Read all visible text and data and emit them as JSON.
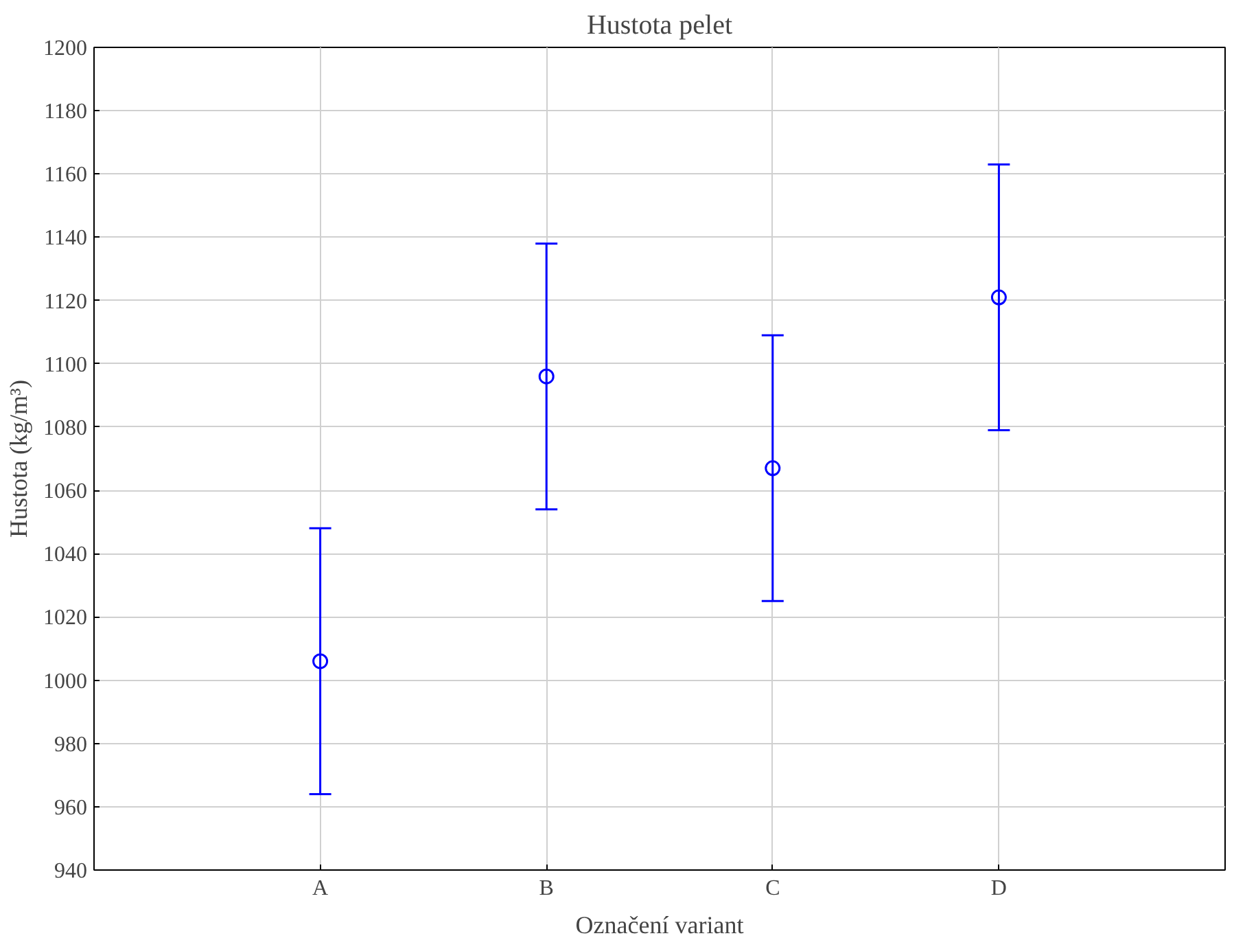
{
  "chart_data": {
    "type": "scatter",
    "title": "Hustota pelet",
    "xlabel": "Označení variant",
    "ylabel": "Hustota (kg/m³)",
    "categories": [
      "A",
      "B",
      "C",
      "D"
    ],
    "series": [
      {
        "color": "#0000ff",
        "values": [
          1006,
          1096,
          1067,
          1121
        ],
        "errors": [
          42,
          42,
          42,
          42
        ]
      }
    ],
    "ylim": [
      940,
      1200
    ],
    "yticks": [
      940,
      960,
      980,
      1000,
      1020,
      1040,
      1060,
      1080,
      1100,
      1120,
      1140,
      1160,
      1180,
      1200
    ],
    "grid": true,
    "marker": "circle"
  }
}
